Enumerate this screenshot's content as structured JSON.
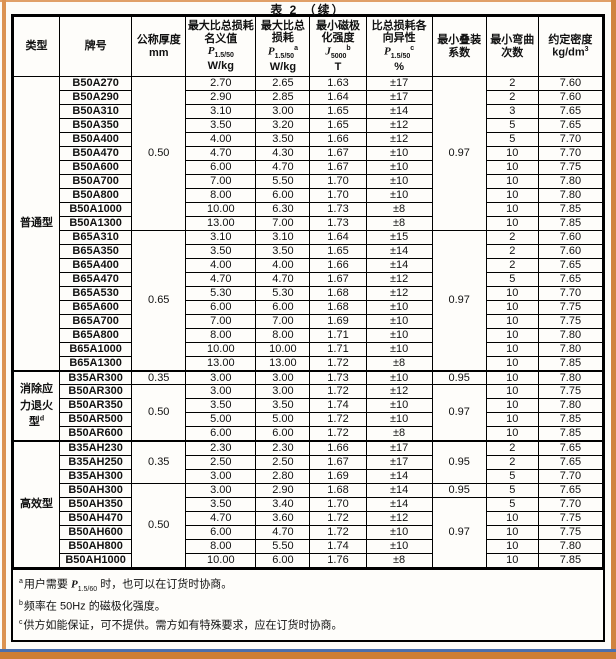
{
  "title": "表 2 （续）",
  "table": {
    "columns": [
      {
        "label": "类型"
      },
      {
        "label": "牌号"
      },
      {
        "label": "公称厚度",
        "unit": "mm"
      },
      {
        "label": "最大比总损耗名义值",
        "sym": "P",
        "sub": "1.5/50",
        "unit": "W/kg"
      },
      {
        "label": "最大比总损耗",
        "sym": "P",
        "sub": "1.5/50",
        "sup": "a",
        "unit": "W/kg"
      },
      {
        "label": "最小磁极化强度",
        "sym": "J",
        "sub": "5000",
        "sup": "b",
        "unit": "T"
      },
      {
        "label": "比总损耗各向异性",
        "sym": "P",
        "sub": "1.5/50",
        "sup": "c",
        "unit": "%"
      },
      {
        "label": "最小叠装系数"
      },
      {
        "label": "最小弯曲次数"
      },
      {
        "label": "约定密度",
        "unit": "kg/dm",
        "unit_sup": "3"
      }
    ],
    "groups": [
      {
        "type": "普通型",
        "type_sup": "",
        "subgroups": [
          {
            "thickness": "0.50",
            "stacking": [
              {
                "value": "0.97",
                "span": 11
              }
            ],
            "rows": [
              [
                "B50A270",
                "2.70",
                "2.65",
                "1.63",
                "±17",
                "2",
                "7.60"
              ],
              [
                "B50A290",
                "2.90",
                "2.85",
                "1.64",
                "±17",
                "2",
                "7.60"
              ],
              [
                "B50A310",
                "3.10",
                "3.00",
                "1.65",
                "±14",
                "3",
                "7.65"
              ],
              [
                "B50A350",
                "3.50",
                "3.20",
                "1.65",
                "±12",
                "5",
                "7.65"
              ],
              [
                "B50A400",
                "4.00",
                "3.50",
                "1.66",
                "±12",
                "5",
                "7.70"
              ],
              [
                "B50A470",
                "4.70",
                "4.30",
                "1.67",
                "±10",
                "10",
                "7.70"
              ],
              [
                "B50A600",
                "6.00",
                "4.70",
                "1.67",
                "±10",
                "10",
                "7.75"
              ],
              [
                "B50A700",
                "7.00",
                "5.50",
                "1.70",
                "±10",
                "10",
                "7.80"
              ],
              [
                "B50A800",
                "8.00",
                "6.00",
                "1.70",
                "±10",
                "10",
                "7.80"
              ],
              [
                "B50A1000",
                "10.00",
                "6.30",
                "1.73",
                "±8",
                "10",
                "7.85"
              ],
              [
                "B50A1300",
                "13.00",
                "7.00",
                "1.73",
                "±8",
                "10",
                "7.85"
              ]
            ]
          },
          {
            "thickness": "0.65",
            "stacking": [
              {
                "value": "0.97",
                "span": 10
              }
            ],
            "rows": [
              [
                "B65A310",
                "3.10",
                "3.10",
                "1.64",
                "±15",
                "2",
                "7.60"
              ],
              [
                "B65A350",
                "3.50",
                "3.50",
                "1.65",
                "±14",
                "2",
                "7.60"
              ],
              [
                "B65A400",
                "4.00",
                "4.00",
                "1.66",
                "±14",
                "2",
                "7.65"
              ],
              [
                "B65A470",
                "4.70",
                "4.70",
                "1.67",
                "±12",
                "5",
                "7.65"
              ],
              [
                "B65A530",
                "5.30",
                "5.30",
                "1.68",
                "±12",
                "10",
                "7.70"
              ],
              [
                "B65A600",
                "6.00",
                "6.00",
                "1.68",
                "±10",
                "10",
                "7.75"
              ],
              [
                "B65A700",
                "7.00",
                "7.00",
                "1.69",
                "±10",
                "10",
                "7.75"
              ],
              [
                "B65A800",
                "8.00",
                "8.00",
                "1.71",
                "±10",
                "10",
                "7.80"
              ],
              [
                "B65A1000",
                "10.00",
                "10.00",
                "1.71",
                "±10",
                "10",
                "7.80"
              ],
              [
                "B65A1300",
                "13.00",
                "13.00",
                "1.72",
                "±8",
                "10",
                "7.85"
              ]
            ]
          }
        ]
      },
      {
        "type": "消除应力退火型",
        "type_sup": "d",
        "subgroups": [
          {
            "thickness": "0.35",
            "stacking": [
              {
                "value": "0.95",
                "span": 1
              }
            ],
            "rows": [
              [
                "B35AR300",
                "3.00",
                "3.00",
                "1.73",
                "±10",
                "10",
                "7.80"
              ]
            ]
          },
          {
            "thickness": "0.50",
            "stacking": [
              {
                "value": "0.97",
                "span": 4
              }
            ],
            "rows": [
              [
                "B50AR300",
                "3.00",
                "3.00",
                "1.72",
                "±12",
                "10",
                "7.75"
              ],
              [
                "B50AR350",
                "3.50",
                "3.50",
                "1.74",
                "±10",
                "10",
                "7.80"
              ],
              [
                "B50AR500",
                "5.00",
                "5.00",
                "1.72",
                "±10",
                "10",
                "7.85"
              ],
              [
                "B50AR600",
                "6.00",
                "6.00",
                "1.72",
                "±8",
                "10",
                "7.85"
              ]
            ]
          }
        ]
      },
      {
        "type": "高效型",
        "type_sup": "",
        "subgroups": [
          {
            "thickness": "0.35",
            "stacking": [
              {
                "value": "0.95",
                "span": 3
              }
            ],
            "rows": [
              [
                "B35AH230",
                "2.30",
                "2.30",
                "1.66",
                "±17",
                "2",
                "7.65"
              ],
              [
                "B35AH250",
                "2.50",
                "2.50",
                "1.67",
                "±17",
                "2",
                "7.65"
              ],
              [
                "B35AH300",
                "3.00",
                "2.80",
                "1.69",
                "±14",
                "5",
                "7.70"
              ]
            ]
          },
          {
            "thickness": "0.50",
            "stacking": [
              {
                "value": "0.95",
                "span": 1
              },
              {
                "value": "0.97",
                "span": 5
              }
            ],
            "rows": [
              [
                "B50AH300",
                "3.00",
                "2.90",
                "1.68",
                "±14",
                "5",
                "7.65"
              ],
              [
                "B50AH350",
                "3.50",
                "3.40",
                "1.70",
                "±14",
                "5",
                "7.70"
              ],
              [
                "B50AH470",
                "4.70",
                "3.60",
                "1.72",
                "±12",
                "10",
                "7.75"
              ],
              [
                "B50AH600",
                "6.00",
                "4.70",
                "1.72",
                "±10",
                "10",
                "7.75"
              ],
              [
                "B50AH800",
                "8.00",
                "5.50",
                "1.74",
                "±10",
                "10",
                "7.80"
              ],
              [
                "B50AH1000",
                "10.00",
                "6.00",
                "1.76",
                "±8",
                "10",
                "7.85"
              ]
            ]
          }
        ]
      }
    ]
  },
  "footnotes": [
    {
      "sup": "a",
      "pre": "用户需要 ",
      "sym": "P",
      "sub": "1.5/60",
      "post": " 时，也可以在订货时协商。"
    },
    {
      "sup": "b",
      "pre": "频率在 50Hz 的磁极化强度。"
    },
    {
      "sup": "c",
      "pre": "供方如能保证，可不提供。需方如有特殊要求，应在订货时协商。"
    }
  ]
}
